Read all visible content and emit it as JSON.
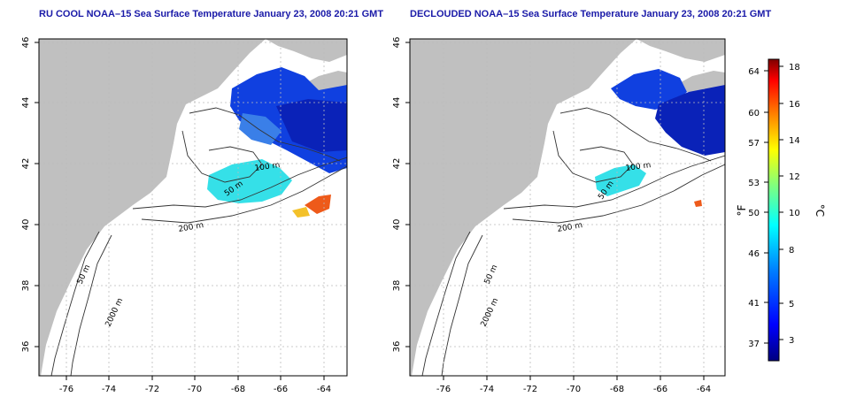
{
  "panels": [
    {
      "id": "left",
      "title": "RU COOL NOAA–15 Sea Surface Temperature January 23, 2008 20:21 GMT"
    },
    {
      "id": "right",
      "title": "DECLOUDED NOAA–15 Sea Surface Temperature January 23, 2008 20:21 GMT"
    }
  ],
  "map": {
    "lon_ticks": [
      "-76",
      "-74",
      "-72",
      "-70",
      "-68",
      "-66",
      "-64"
    ],
    "lat_ticks": [
      "46",
      "44",
      "42",
      "40",
      "38",
      "36"
    ],
    "contour_labels": [
      "100 m",
      "50 m",
      "200 m",
      "50 m",
      "2000 m"
    ],
    "land_color": "#c0c0c0",
    "grid_style": "dotted"
  },
  "colorbar": {
    "fahrenheit_ticks": [
      "64",
      "60",
      "57",
      "53",
      "50",
      "46",
      "41",
      "37"
    ],
    "celsius_ticks": [
      "18",
      "16",
      "14",
      "12",
      "10",
      "8",
      "5",
      "3"
    ],
    "unit_f": "°F",
    "unit_c": "°C",
    "colors": [
      "#00007f",
      "#0000ff",
      "#007fff",
      "#00ffff",
      "#7fff7f",
      "#ffff00",
      "#ff7f00",
      "#ff0000",
      "#7f0000"
    ]
  }
}
